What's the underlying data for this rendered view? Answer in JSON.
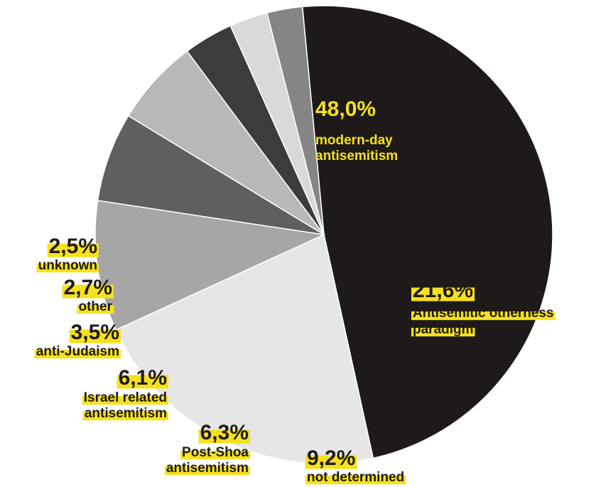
{
  "chart_data": {
    "type": "pie",
    "categories": [
      "modern-day antisemitism",
      "Antisemitic otherness paradigm",
      "not determined",
      "Post-Shoa antisemitism",
      "Israel related antisemitism",
      "anti-Judaism",
      "other",
      "unknown"
    ],
    "values": [
      48.0,
      21.6,
      9.2,
      6.3,
      6.1,
      3.5,
      2.7,
      2.5
    ],
    "value_labels": [
      "48,0%",
      "21,6%",
      "9,2%",
      "6,3%",
      "6,1%",
      "3,5%",
      "2,7%",
      "2,5%"
    ],
    "label_lines": [
      [
        "modern-day",
        "antisemitism"
      ],
      [
        "Antisemitic otherness",
        "paradigm"
      ],
      [
        "not determined"
      ],
      [
        "Post-Shoa",
        "antisemitism"
      ],
      [
        "Israel related",
        "antisemitism"
      ],
      [
        "anti-Judaism"
      ],
      [
        "other"
      ],
      [
        "unknown"
      ]
    ],
    "colors": [
      "#1e1a1a",
      "#e6e6e6",
      "#a6a6a6",
      "#5f5f5f",
      "#b8b8b8",
      "#3c3c3c",
      "#d9d9d9",
      "#858585"
    ],
    "label_color_inside": "#f5e11d",
    "label_highlight": "#f5e11d",
    "label_text_color": "#1e1a1a",
    "start_angle_deg": 95.4,
    "direction": "clockwise"
  }
}
